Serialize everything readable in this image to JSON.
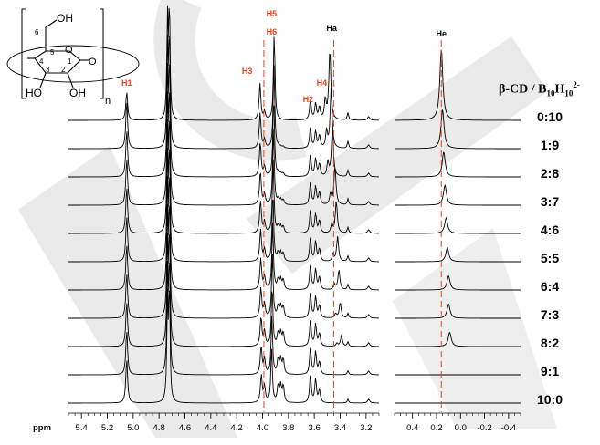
{
  "chart_data": {
    "type": "line",
    "title": "β-CD / B10H10^2-",
    "title_parts": {
      "greek": "β",
      "main": "-CD / B",
      "sub1": "10",
      "mid": "H",
      "sub2": "10",
      "sup": "2-"
    },
    "xlabel": "ppm",
    "panels": [
      {
        "name": "main",
        "xlim": [
          5.5,
          3.1
        ],
        "ticks": [
          "5.4",
          "5.2",
          "5.0",
          "4.8",
          "4.6",
          "4.4",
          "4.2",
          "4.0",
          "3.8",
          "3.6",
          "3.4",
          "3.2"
        ],
        "tick_values": [
          5.4,
          5.2,
          5.0,
          4.8,
          4.6,
          4.4,
          4.2,
          4.0,
          3.8,
          3.6,
          3.4,
          3.2
        ]
      },
      {
        "name": "high-field",
        "xlim": [
          0.55,
          -0.5
        ],
        "ticks": [
          "0.4",
          "0.2",
          "0.0",
          "-0.2",
          "-0.4"
        ],
        "tick_values": [
          0.4,
          0.2,
          0.0,
          -0.2,
          -0.4
        ]
      }
    ],
    "ratios": [
      "0:10",
      "1:9",
      "2:8",
      "3:7",
      "4:6",
      "5:5",
      "6:4",
      "7:3",
      "8:2",
      "9:1",
      "10:0"
    ],
    "peak_labels": [
      {
        "text": "H1",
        "ppm": 5.05,
        "color": "#e8451b"
      },
      {
        "text": "H3",
        "ppm": 4.02,
        "color": "#e8451b"
      },
      {
        "text": "H5",
        "ppm": 3.93,
        "color": "#e8451b"
      },
      {
        "text": "H6",
        "ppm": 3.93,
        "color": "#e8451b"
      },
      {
        "text": "H4",
        "ppm": 3.57,
        "color": "#e8451b"
      },
      {
        "text": "H2",
        "ppm": 3.62,
        "color": "#e8451b"
      },
      {
        "text": "Ha",
        "ppm": 3.48,
        "color": "#000000"
      },
      {
        "text": "He",
        "ppm": 0.16,
        "color": "#000000",
        "panel": 1
      }
    ],
    "guide_lines": [
      {
        "ppm": 3.99,
        "panel": 0,
        "color": "#e8451b"
      },
      {
        "ppm": 3.45,
        "panel": 0,
        "color": "#e8451b"
      },
      {
        "ppm": 0.16,
        "panel": 1,
        "color": "#e8451b"
      }
    ],
    "series": [
      {
        "ratio": "0:10",
        "ha": 3.48,
        "ha_height": 1.0,
        "he": 0.16,
        "he_height": 1.0
      },
      {
        "ratio": "1:9",
        "ha": 3.47,
        "ha_height": 0.85,
        "he": 0.15,
        "he_height": 0.55
      },
      {
        "ratio": "2:8",
        "ha": 3.46,
        "ha_height": 0.7,
        "he": 0.14,
        "he_height": 0.35
      },
      {
        "ratio": "3:7",
        "ha": 3.44,
        "ha_height": 0.55,
        "he": 0.13,
        "he_height": 0.28
      },
      {
        "ratio": "4:6",
        "ha": 3.43,
        "ha_height": 0.45,
        "he": 0.12,
        "he_height": 0.22
      },
      {
        "ratio": "5:5",
        "ha": 3.42,
        "ha_height": 0.35,
        "he": 0.11,
        "he_height": 0.2
      },
      {
        "ratio": "6:4",
        "ha": 3.41,
        "ha_height": 0.28,
        "he": 0.1,
        "he_height": 0.2
      },
      {
        "ratio": "7:3",
        "ha": 3.4,
        "ha_height": 0.22,
        "he": 0.1,
        "he_height": 0.2
      },
      {
        "ratio": "8:2",
        "ha": 3.39,
        "ha_height": 0.15,
        "he": 0.09,
        "he_height": 0.2
      },
      {
        "ratio": "9:1",
        "ha": 3.39,
        "ha_height": 0.0,
        "he": 0.09,
        "he_height": 0.0
      },
      {
        "ratio": "10:0",
        "ha": 0,
        "ha_height": 0.0,
        "he": 0,
        "he_height": 0.0
      }
    ],
    "molecule_labels": [
      "OH",
      "6",
      "5",
      "4",
      "1",
      "O",
      "O",
      "3",
      "2",
      "HO",
      "OH",
      "n"
    ],
    "colors": {
      "trace": "#000000",
      "label": "#e8451b",
      "watermark": "#d9d9d9"
    }
  }
}
